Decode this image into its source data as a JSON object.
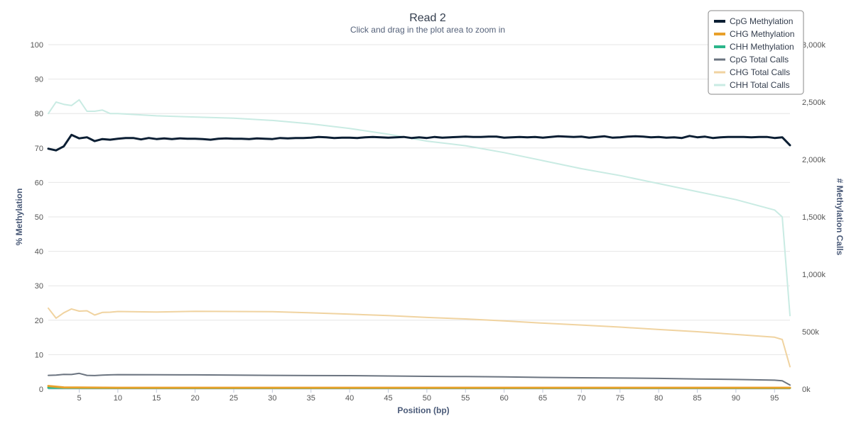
{
  "chart_data": {
    "type": "line",
    "title": "Read 2",
    "subtitle": "Click and drag in the plot area to zoom in",
    "xlabel": "Position (bp)",
    "ylabel": "% Methylation",
    "y2label": "# Methylation Calls",
    "xlim": [
      1,
      97
    ],
    "ylim": [
      0,
      100
    ],
    "y2lim": [
      0,
      3000000
    ],
    "x_ticks": [
      5,
      10,
      15,
      20,
      25,
      30,
      35,
      40,
      45,
      50,
      55,
      60,
      65,
      70,
      75,
      80,
      85,
      90,
      95
    ],
    "y_ticks": [
      0,
      10,
      20,
      30,
      40,
      50,
      60,
      70,
      80,
      90,
      100
    ],
    "y2_ticks": [
      {
        "value": 0,
        "label": "0k"
      },
      {
        "value": 500000,
        "label": "500k"
      },
      {
        "value": 1000000,
        "label": "1,000k"
      },
      {
        "value": 1500000,
        "label": "1,500k"
      },
      {
        "value": 2000000,
        "label": "2,000k"
      },
      {
        "value": 2500000,
        "label": "2,500k"
      },
      {
        "value": 3000000,
        "label": "3,000k"
      }
    ],
    "grid": "horizontal",
    "legend_position": "top-right",
    "series": [
      {
        "name": "CpG Methylation",
        "axis": "left",
        "color": "#0b1e33",
        "width": 3,
        "values": [
          [
            1,
            69.8
          ],
          [
            2,
            69.3
          ],
          [
            3,
            70.5
          ],
          [
            4,
            73.8
          ],
          [
            5,
            72.8
          ],
          [
            6,
            73.1
          ],
          [
            7,
            72.0
          ],
          [
            8,
            72.6
          ],
          [
            9,
            72.4
          ],
          [
            10,
            72.7
          ],
          [
            11,
            72.9
          ],
          [
            12,
            72.9
          ],
          [
            13,
            72.5
          ],
          [
            14,
            72.9
          ],
          [
            15,
            72.6
          ],
          [
            16,
            72.8
          ],
          [
            17,
            72.6
          ],
          [
            18,
            72.8
          ],
          [
            19,
            72.7
          ],
          [
            20,
            72.7
          ],
          [
            21,
            72.6
          ],
          [
            22,
            72.4
          ],
          [
            23,
            72.7
          ],
          [
            24,
            72.8
          ],
          [
            25,
            72.7
          ],
          [
            26,
            72.7
          ],
          [
            27,
            72.6
          ],
          [
            28,
            72.8
          ],
          [
            29,
            72.7
          ],
          [
            30,
            72.6
          ],
          [
            31,
            72.9
          ],
          [
            32,
            72.8
          ],
          [
            33,
            72.9
          ],
          [
            34,
            72.9
          ],
          [
            35,
            73.0
          ],
          [
            36,
            73.2
          ],
          [
            37,
            73.1
          ],
          [
            38,
            72.9
          ],
          [
            39,
            73.0
          ],
          [
            40,
            73.0
          ],
          [
            41,
            72.9
          ],
          [
            42,
            73.1
          ],
          [
            43,
            73.2
          ],
          [
            44,
            73.1
          ],
          [
            45,
            73.0
          ],
          [
            46,
            73.1
          ],
          [
            47,
            73.2
          ],
          [
            48,
            72.9
          ],
          [
            49,
            73.1
          ],
          [
            50,
            72.9
          ],
          [
            51,
            73.2
          ],
          [
            52,
            73.0
          ],
          [
            53,
            73.1
          ],
          [
            54,
            73.2
          ],
          [
            55,
            73.3
          ],
          [
            56,
            73.2
          ],
          [
            57,
            73.2
          ],
          [
            58,
            73.3
          ],
          [
            59,
            73.3
          ],
          [
            60,
            73.0
          ],
          [
            61,
            73.1
          ],
          [
            62,
            73.2
          ],
          [
            63,
            73.1
          ],
          [
            64,
            73.2
          ],
          [
            65,
            73.0
          ],
          [
            66,
            73.2
          ],
          [
            67,
            73.4
          ],
          [
            68,
            73.3
          ],
          [
            69,
            73.2
          ],
          [
            70,
            73.3
          ],
          [
            71,
            73.0
          ],
          [
            72,
            73.2
          ],
          [
            73,
            73.4
          ],
          [
            74,
            73.0
          ],
          [
            75,
            73.1
          ],
          [
            76,
            73.3
          ],
          [
            77,
            73.4
          ],
          [
            78,
            73.3
          ],
          [
            79,
            73.1
          ],
          [
            80,
            73.2
          ],
          [
            81,
            73.0
          ],
          [
            82,
            73.1
          ],
          [
            83,
            72.9
          ],
          [
            84,
            73.5
          ],
          [
            85,
            73.1
          ],
          [
            86,
            73.3
          ],
          [
            87,
            72.9
          ],
          [
            88,
            73.1
          ],
          [
            89,
            73.2
          ],
          [
            90,
            73.2
          ],
          [
            91,
            73.2
          ],
          [
            92,
            73.1
          ],
          [
            93,
            73.2
          ],
          [
            94,
            73.2
          ],
          [
            95,
            72.9
          ],
          [
            96,
            73.1
          ],
          [
            97,
            70.8
          ]
        ]
      },
      {
        "name": "CHG Methylation",
        "axis": "left",
        "color": "#e8a02a",
        "width": 3,
        "values": [
          [
            1,
            0.9
          ],
          [
            3,
            0.5
          ],
          [
            10,
            0.4
          ],
          [
            20,
            0.4
          ],
          [
            30,
            0.4
          ],
          [
            40,
            0.4
          ],
          [
            50,
            0.4
          ],
          [
            60,
            0.4
          ],
          [
            70,
            0.4
          ],
          [
            80,
            0.4
          ],
          [
            90,
            0.4
          ],
          [
            97,
            0.4
          ]
        ]
      },
      {
        "name": "CHH Methylation",
        "axis": "left",
        "color": "#2bb58a",
        "width": 3,
        "values": [
          [
            1,
            0.4
          ],
          [
            10,
            0.3
          ],
          [
            20,
            0.3
          ],
          [
            30,
            0.3
          ],
          [
            40,
            0.3
          ],
          [
            50,
            0.3
          ],
          [
            60,
            0.3
          ],
          [
            70,
            0.3
          ],
          [
            80,
            0.3
          ],
          [
            90,
            0.3
          ],
          [
            97,
            0.3
          ]
        ]
      },
      {
        "name": "CpG Total Calls",
        "axis": "right",
        "color": "#6b7480",
        "width": 2,
        "values": [
          [
            1,
            120000
          ],
          [
            2,
            122000
          ],
          [
            3,
            128000
          ],
          [
            4,
            127000
          ],
          [
            5,
            137000
          ],
          [
            6,
            120000
          ],
          [
            7,
            118000
          ],
          [
            8,
            122000
          ],
          [
            9,
            124000
          ],
          [
            10,
            126000
          ],
          [
            15,
            125000
          ],
          [
            20,
            124000
          ],
          [
            25,
            122000
          ],
          [
            30,
            120000
          ],
          [
            35,
            118000
          ],
          [
            40,
            117000
          ],
          [
            45,
            114000
          ],
          [
            50,
            111000
          ],
          [
            55,
            109000
          ],
          [
            60,
            106000
          ],
          [
            65,
            102000
          ],
          [
            70,
            99000
          ],
          [
            75,
            96000
          ],
          [
            80,
            93000
          ],
          [
            85,
            88000
          ],
          [
            90,
            84000
          ],
          [
            95,
            78000
          ],
          [
            96,
            72000
          ],
          [
            97,
            35000
          ]
        ]
      },
      {
        "name": "CHG Total Calls",
        "axis": "right",
        "color": "#f0d3a0",
        "width": 2,
        "values": [
          [
            1,
            705000
          ],
          [
            2,
            618000
          ],
          [
            3,
            665000
          ],
          [
            4,
            698000
          ],
          [
            5,
            679000
          ],
          [
            6,
            682000
          ],
          [
            7,
            645000
          ],
          [
            8,
            668000
          ],
          [
            9,
            670000
          ],
          [
            10,
            676000
          ],
          [
            15,
            671000
          ],
          [
            20,
            678000
          ],
          [
            25,
            676000
          ],
          [
            30,
            674000
          ],
          [
            35,
            664000
          ],
          [
            40,
            653000
          ],
          [
            45,
            640000
          ],
          [
            50,
            624000
          ],
          [
            55,
            611000
          ],
          [
            60,
            594000
          ],
          [
            65,
            575000
          ],
          [
            70,
            558000
          ],
          [
            75,
            540000
          ],
          [
            80,
            519000
          ],
          [
            85,
            500000
          ],
          [
            90,
            476000
          ],
          [
            95,
            452000
          ],
          [
            96,
            432000
          ],
          [
            97,
            195000
          ]
        ]
      },
      {
        "name": "CHH Total Calls",
        "axis": "right",
        "color": "#c9ebe3",
        "width": 2,
        "values": [
          [
            1,
            2400000
          ],
          [
            2,
            2500000
          ],
          [
            3,
            2480000
          ],
          [
            4,
            2470000
          ],
          [
            5,
            2520000
          ],
          [
            6,
            2420000
          ],
          [
            7,
            2420000
          ],
          [
            8,
            2430000
          ],
          [
            9,
            2400000
          ],
          [
            10,
            2400000
          ],
          [
            15,
            2380000
          ],
          [
            20,
            2370000
          ],
          [
            25,
            2360000
          ],
          [
            30,
            2340000
          ],
          [
            35,
            2310000
          ],
          [
            40,
            2270000
          ],
          [
            45,
            2220000
          ],
          [
            50,
            2160000
          ],
          [
            55,
            2120000
          ],
          [
            60,
            2060000
          ],
          [
            65,
            1990000
          ],
          [
            70,
            1920000
          ],
          [
            75,
            1860000
          ],
          [
            80,
            1790000
          ],
          [
            85,
            1720000
          ],
          [
            90,
            1650000
          ],
          [
            95,
            1560000
          ],
          [
            96,
            1500000
          ],
          [
            97,
            640000
          ]
        ]
      }
    ]
  }
}
